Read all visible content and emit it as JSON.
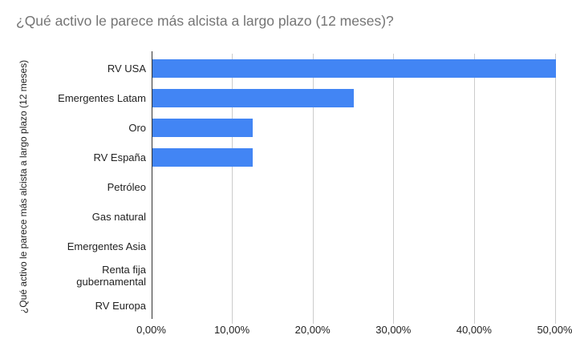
{
  "title": "¿Qué activo le parece más alcista a largo plazo (12 meses)?",
  "chart_data": {
    "type": "bar",
    "orientation": "horizontal",
    "title": "¿Qué activo le parece más alcista a largo plazo (12 meses)?",
    "y_axis_title": "¿Qué activo le parece más alcista a largo plazo (12 meses)",
    "categories": [
      "RV USA",
      "Emergentes Latam",
      "Oro",
      "RV España",
      "Petróleo",
      "Gas natural",
      "Emergentes Asia",
      "Renta fija gubernamental",
      "RV Europa"
    ],
    "values": [
      50,
      25,
      12.5,
      12.5,
      0,
      0,
      0,
      0,
      0
    ],
    "value_unit": "%",
    "x_tick_labels": [
      "0,00%",
      "10,00%",
      "20,00%",
      "30,00%",
      "40,00%",
      "50,00%"
    ],
    "x_tick_values": [
      0,
      10,
      20,
      30,
      40,
      50
    ],
    "xlim": [
      0,
      50
    ],
    "grid": true,
    "legend": "none",
    "colors": {
      "bar": "#4285f4",
      "gridline": "#cccccc",
      "baseline": "#333333",
      "title": "#757575",
      "label": "#222222"
    }
  }
}
